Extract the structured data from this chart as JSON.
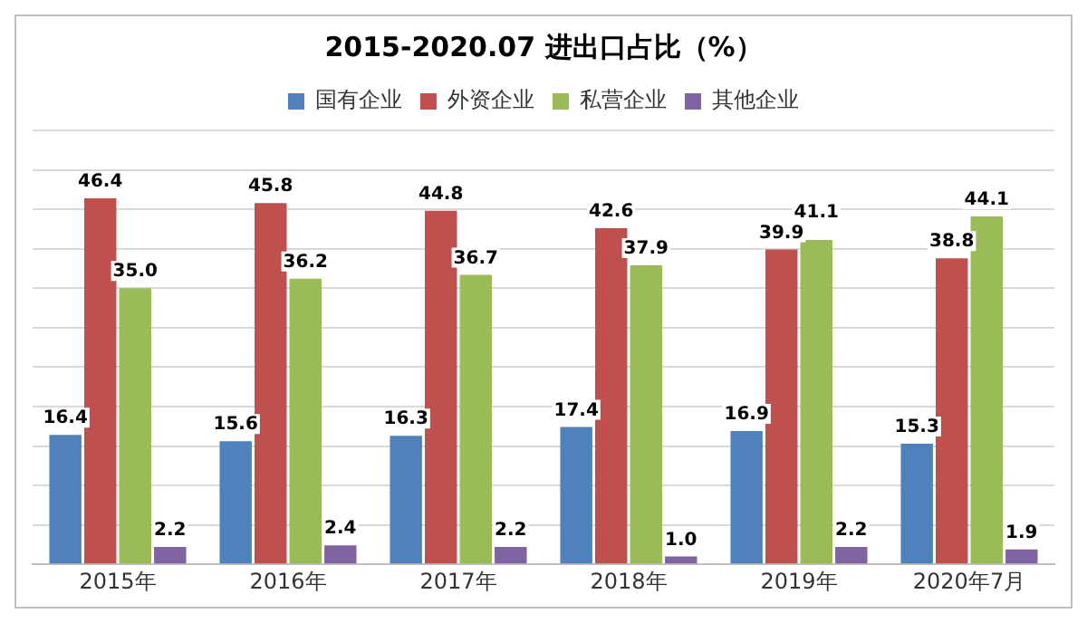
{
  "chart_data": {
    "type": "bar",
    "title": "2015-2020.07 进出口占比（%）",
    "categories": [
      "2015年",
      "2016年",
      "2017年",
      "2018年",
      "2019年",
      "2020年7月"
    ],
    "series": [
      {
        "name": "国有企业",
        "color": "#4f81bd",
        "values": [
          16.4,
          15.6,
          16.3,
          17.4,
          16.9,
          15.3
        ],
        "value_labels": [
          "16.4",
          "15.6",
          "16.3",
          "17.4",
          "16.9",
          "15.3"
        ]
      },
      {
        "name": "外资企业",
        "color": "#c0504d",
        "values": [
          46.4,
          45.8,
          44.8,
          42.6,
          39.9,
          38.8
        ],
        "value_labels": [
          "46.4",
          "45.8",
          "44.8",
          "42.6",
          "39.9",
          "38.8"
        ]
      },
      {
        "name": "私营企业",
        "color": "#9bbb59",
        "values": [
          35.0,
          36.2,
          36.7,
          37.9,
          41.1,
          44.1
        ],
        "value_labels": [
          "35.0",
          "36.2",
          "36.7",
          "37.9",
          "41.1",
          "44.1"
        ]
      },
      {
        "name": "其他企业",
        "color": "#8064a2",
        "values": [
          2.2,
          2.4,
          2.2,
          1.0,
          2.2,
          1.9
        ],
        "value_labels": [
          "2.2",
          "2.4",
          "2.2",
          "1.0",
          "2.2",
          "1.9"
        ]
      }
    ],
    "ylim": [
      0,
      55
    ],
    "yticks": [
      {
        "value": 0,
        "label": null
      },
      {
        "value": 5,
        "label": null
      },
      {
        "value": 10,
        "label": null
      },
      {
        "value": 15,
        "label": null
      },
      {
        "value": 20,
        "label": null
      },
      {
        "value": 25,
        "label": null
      },
      {
        "value": 30,
        "label": null
      },
      {
        "value": 35,
        "label": null
      },
      {
        "value": 40,
        "label": null
      },
      {
        "value": 45,
        "label": null
      },
      {
        "value": 50,
        "label": null
      },
      {
        "value": 55,
        "label": null
      }
    ],
    "data_labels": true,
    "grid": "y",
    "legend": "top",
    "tick_labels": "x"
  }
}
